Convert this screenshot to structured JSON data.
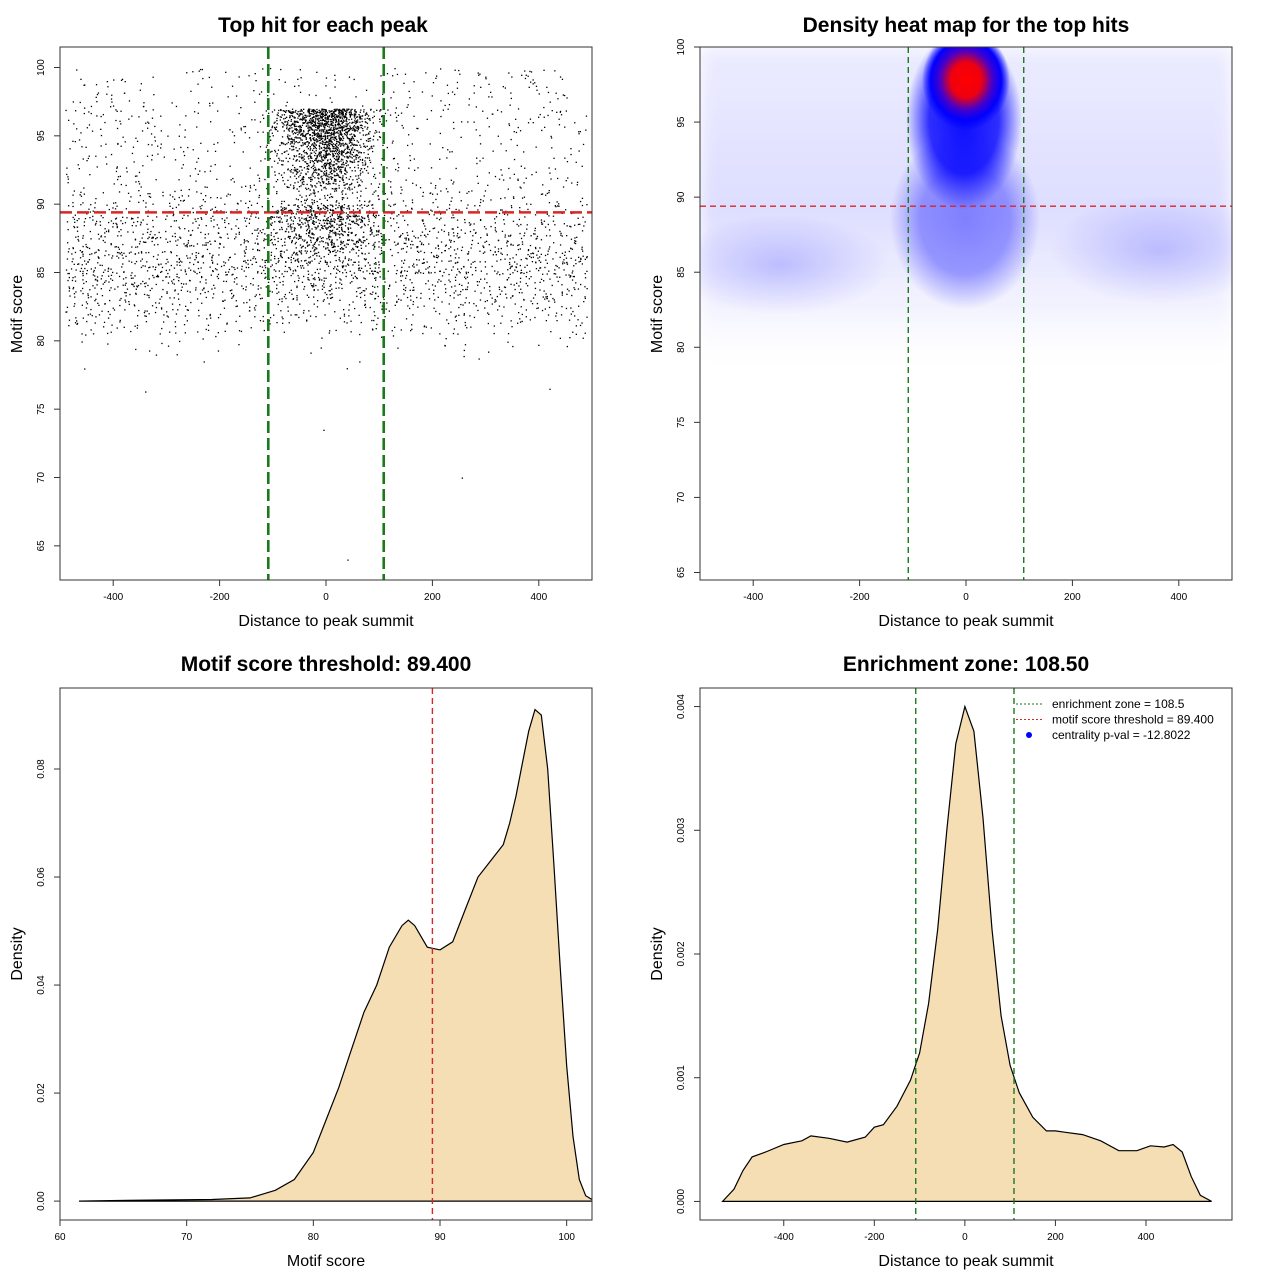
{
  "chart_data": [
    {
      "type": "scatter",
      "title": "Top hit for each peak",
      "xlabel": "Distance to peak summit",
      "ylabel": "Motif score",
      "xlim": [
        -500,
        500
      ],
      "ylim": [
        62.5,
        101.5
      ],
      "xticks": [
        -400,
        -200,
        0,
        200,
        400
      ],
      "yticks": [
        65,
        70,
        75,
        80,
        85,
        90,
        95,
        100
      ],
      "points_sample": [
        [
          -20,
          98.0
        ],
        [
          10,
          97.5
        ],
        [
          -35,
          96.8
        ],
        [
          25,
          95.6
        ],
        [
          -5,
          94.2
        ],
        [
          40,
          93.5
        ],
        [
          -60,
          92.1
        ],
        [
          15,
          91.0
        ],
        [
          -10,
          88.5
        ],
        [
          30,
          87.2
        ],
        [
          -300,
          86.0
        ],
        [
          280,
          85.4
        ],
        [
          -420,
          84.2
        ],
        [
          410,
          83.1
        ],
        [
          -150,
          89.0
        ],
        [
          180,
          88.0
        ],
        [
          -470,
          81.5
        ],
        [
          460,
          82.0
        ],
        [
          -320,
          79.0
        ],
        [
          -230,
          78.5
        ],
        [
          420,
          76.5
        ],
        [
          -340,
          76.3
        ],
        [
          -5,
          73.5
        ],
        [
          255,
          70.0
        ],
        [
          40,
          64.0
        ]
      ],
      "hlines": [
        {
          "y": 89.4,
          "color": "#d62728",
          "style": "dashed"
        }
      ],
      "vlines": [
        {
          "x": -108.5,
          "color": "#1a7a1a",
          "style": "dashed"
        },
        {
          "x": 108.5,
          "color": "#1a7a1a",
          "style": "dashed"
        }
      ]
    },
    {
      "type": "heatmap",
      "title": "Density heat map for the top hits",
      "xlabel": "Distance to peak summit",
      "ylabel": "Motif score",
      "xlim": [
        -500,
        500
      ],
      "ylim": [
        64.5,
        100
      ],
      "xticks": [
        -400,
        -200,
        0,
        200,
        400
      ],
      "yticks": [
        65,
        70,
        75,
        80,
        85,
        90,
        95,
        100
      ],
      "colors": {
        "low": "#ffffff",
        "mid": "#0000ff",
        "high": "#ff0000"
      },
      "peak": {
        "x": 0,
        "y": 97.8
      },
      "hlines": [
        {
          "y": 89.4,
          "color": "#d62728",
          "style": "dashed"
        }
      ],
      "vlines": [
        {
          "x": -108.5,
          "color": "#1a7a1a",
          "style": "dashed"
        },
        {
          "x": 108.5,
          "color": "#1a7a1a",
          "style": "dashed"
        }
      ]
    },
    {
      "type": "area",
      "title": "Motif score threshold: 89.400",
      "xlabel": "Motif score",
      "ylabel": "Density",
      "xlim": [
        60,
        102
      ],
      "ylim": [
        -0.0035,
        0.095
      ],
      "xticks": [
        60,
        70,
        80,
        90,
        100
      ],
      "yticks": [
        0.0,
        0.02,
        0.04,
        0.06,
        0.08
      ],
      "ytick_labels": [
        "0.00",
        "0.02",
        "0.04",
        "0.06",
        "0.08"
      ],
      "fill": "#f5deb3",
      "x": [
        61.5,
        64,
        68,
        72,
        75,
        77,
        78.5,
        80,
        81,
        82,
        83,
        84,
        85,
        86,
        87,
        87.5,
        88,
        88.5,
        89,
        90,
        91,
        92,
        93,
        94,
        95,
        95.5,
        96,
        96.5,
        97,
        97.5,
        98,
        98.5,
        99,
        99.5,
        100,
        100.5,
        101,
        101.5,
        102.2
      ],
      "y": [
        0.0,
        0.0001,
        0.0002,
        0.0003,
        0.0006,
        0.002,
        0.004,
        0.009,
        0.015,
        0.021,
        0.028,
        0.035,
        0.04,
        0.047,
        0.051,
        0.052,
        0.051,
        0.049,
        0.047,
        0.0465,
        0.048,
        0.054,
        0.06,
        0.063,
        0.066,
        0.07,
        0.075,
        0.081,
        0.087,
        0.091,
        0.09,
        0.08,
        0.062,
        0.043,
        0.025,
        0.012,
        0.004,
        0.001,
        0.0
      ],
      "vlines": [
        {
          "x": 89.4,
          "color": "#d62728",
          "style": "dashed"
        }
      ]
    },
    {
      "type": "area",
      "title": "Enrichment zone: 108.50",
      "xlabel": "Distance to peak summit",
      "ylabel": "Density",
      "xlim": [
        -585,
        590
      ],
      "ylim": [
        -0.00015,
        0.00415
      ],
      "xticks": [
        -400,
        -200,
        0,
        200,
        400
      ],
      "yticks": [
        0.0,
        0.001,
        0.002,
        0.003,
        0.004
      ],
      "ytick_labels": [
        "0.000",
        "0.001",
        "0.002",
        "0.003",
        "0.004"
      ],
      "fill": "#f5deb3",
      "x": [
        -535,
        -510,
        -490,
        -470,
        -440,
        -400,
        -360,
        -340,
        -300,
        -260,
        -220,
        -200,
        -180,
        -150,
        -120,
        -100,
        -80,
        -60,
        -40,
        -20,
        0,
        20,
        40,
        60,
        80,
        100,
        120,
        150,
        180,
        200,
        220,
        260,
        300,
        340,
        380,
        410,
        440,
        460,
        480,
        500,
        520,
        545
      ],
      "y": [
        0.0,
        0.0001,
        0.00025,
        0.00036,
        0.0004,
        0.00046,
        0.00049,
        0.00053,
        0.00051,
        0.00048,
        0.00052,
        0.0006,
        0.00062,
        0.00077,
        0.00098,
        0.0012,
        0.0016,
        0.0022,
        0.003,
        0.0037,
        0.004,
        0.0038,
        0.0031,
        0.0022,
        0.0015,
        0.0011,
        0.00088,
        0.00068,
        0.00057,
        0.00057,
        0.00056,
        0.00054,
        0.00049,
        0.00041,
        0.00041,
        0.00045,
        0.00044,
        0.00046,
        0.0004,
        0.0002,
        5e-05,
        0.0
      ],
      "vlines": [
        {
          "x": -108.5,
          "color": "#1a7a1a",
          "style": "dashed"
        },
        {
          "x": 108.5,
          "color": "#1a7a1a",
          "style": "dashed"
        }
      ],
      "legend": {
        "placement": "top-right",
        "entries": [
          {
            "label": "enrichment zone = 108.5",
            "color": "#1a7a1a",
            "symbol": "dotted-line"
          },
          {
            "label": "motif score threshold = 89.400",
            "color": "#d62728",
            "symbol": "dotted-line"
          },
          {
            "label": "centrality p-val = -12.8022",
            "color": "#0000ff",
            "symbol": "point"
          }
        ]
      }
    }
  ]
}
